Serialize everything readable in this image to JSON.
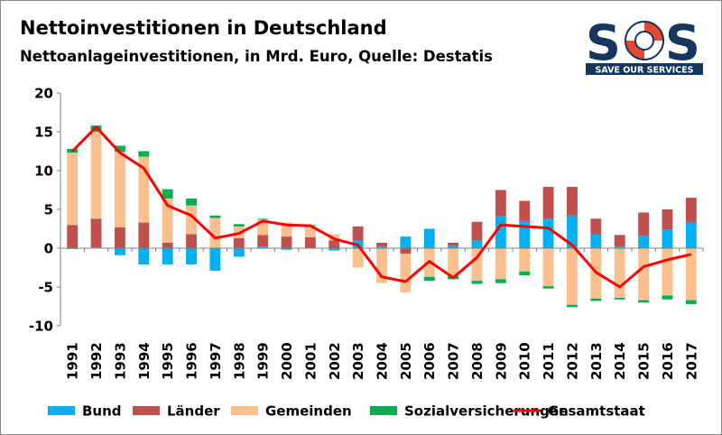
{
  "chart_data": {
    "type": "bar",
    "title": "Nettoinvestitionen in Deutschland",
    "subtitle": "Nettoanlageinvestitionen, in Mrd. Euro, Quelle: Destatis",
    "ylim": [
      -10,
      20
    ],
    "yticks": [
      20,
      15,
      10,
      5,
      0,
      -5,
      -10
    ],
    "categories": [
      "1991",
      "1992",
      "1993",
      "1994",
      "1995",
      "1996",
      "1997",
      "1998",
      "1999",
      "2000",
      "2001",
      "2002",
      "2003",
      "2004",
      "2005",
      "2006",
      "2007",
      "2008",
      "2009",
      "2010",
      "2011",
      "2012",
      "2013",
      "2014",
      "2015",
      "2016",
      "2017"
    ],
    "series": [
      {
        "name": "Bund",
        "color": "#00b0f0",
        "values": [
          -0.1,
          0.1,
          -0.9,
          -2.1,
          -2.1,
          -2.1,
          -2.9,
          -1.1,
          0.2,
          -0.2,
          0.0,
          -0.3,
          1.0,
          0.2,
          1.5,
          2.5,
          0.3,
          1.0,
          4.1,
          3.5,
          3.8,
          4.2,
          1.8,
          0.2,
          1.6,
          2.4,
          3.3
        ]
      },
      {
        "name": "Länder",
        "color": "#c0504d",
        "values": [
          3.0,
          3.7,
          2.7,
          3.3,
          0.7,
          1.8,
          0.0,
          1.3,
          1.5,
          1.5,
          1.4,
          1.0,
          1.8,
          0.5,
          -0.7,
          0.0,
          0.4,
          2.4,
          3.4,
          2.6,
          4.1,
          3.7,
          2.0,
          1.5,
          3.0,
          2.6,
          3.2
        ]
      },
      {
        "name": "Gemeinden",
        "color": "#fac090",
        "values": [
          9.3,
          11.2,
          9.7,
          8.5,
          5.7,
          3.7,
          3.9,
          1.5,
          2.0,
          1.8,
          1.5,
          0.8,
          -2.5,
          -4.5,
          -5.0,
          -3.7,
          -3.6,
          -4.2,
          -4.0,
          -3.0,
          -4.9,
          -7.3,
          -6.5,
          -6.4,
          -6.7,
          -6.1,
          -6.7
        ]
      },
      {
        "name": "Sozialversicherungen",
        "color": "#00b050",
        "values": [
          0.5,
          0.8,
          0.8,
          0.7,
          1.2,
          0.9,
          0.3,
          0.3,
          0.1,
          0.0,
          0.1,
          0.0,
          0.0,
          0.0,
          0.0,
          -0.5,
          -0.4,
          -0.4,
          -0.5,
          -0.5,
          -0.3,
          -0.3,
          -0.3,
          -0.2,
          -0.3,
          -0.5,
          -0.5
        ]
      },
      {
        "name": "Gesamtstaat",
        "color": "#ff0000",
        "kind": "line",
        "values": [
          12.5,
          15.6,
          12.3,
          10.3,
          5.5,
          4.2,
          1.3,
          1.9,
          3.5,
          3.0,
          2.9,
          1.2,
          0.4,
          -3.7,
          -4.3,
          -1.7,
          -3.8,
          -1.2,
          3.0,
          2.8,
          2.6,
          0.4,
          -3.1,
          -5.0,
          -2.4,
          -1.5,
          -0.8
        ]
      }
    ],
    "legend_position": "bottom",
    "grid": false
  },
  "logo": {
    "text": "SOS",
    "tagline": "SAVE OUR SERVICES",
    "color": "#17365d"
  }
}
